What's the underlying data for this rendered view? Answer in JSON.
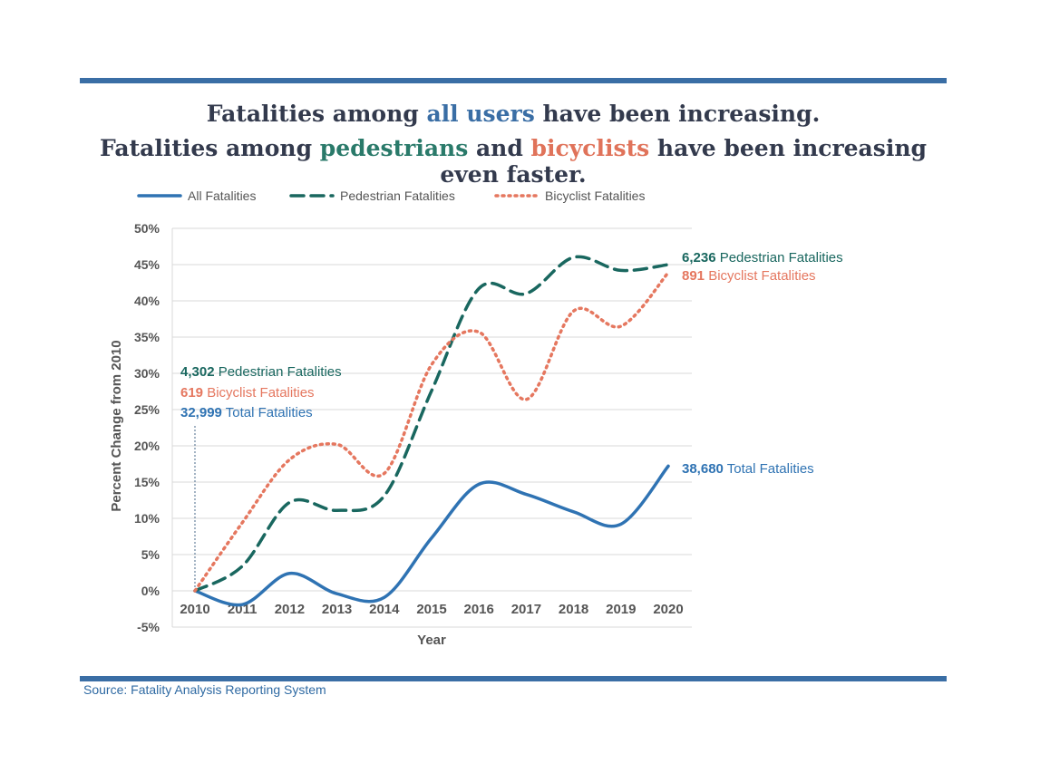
{
  "headline": {
    "line1": {
      "a": "Fatalities among ",
      "b": "all users",
      "c": " have been increasing."
    },
    "line2": {
      "a": "Fatalities among ",
      "b": "pedestrians",
      "c": " and ",
      "d": "bicyclists",
      "e": " have been increasing even faster."
    }
  },
  "source": "Source: Fatality Analysis Reporting System",
  "colors": {
    "all": "#2f73b3",
    "pedestrian": "#19675f",
    "bicyclist": "#e5775f",
    "rule": "#3a6ea5",
    "grid": "#d9d9d9",
    "axis_text": "#555555"
  },
  "chart_data": {
    "type": "line",
    "xlabel": "Year",
    "ylabel": "Percent Change from 2010",
    "x": [
      2010,
      2011,
      2012,
      2013,
      2014,
      2015,
      2016,
      2017,
      2018,
      2019,
      2020
    ],
    "ylim": [
      -5,
      50
    ],
    "yticks": [
      -5,
      0,
      5,
      10,
      15,
      20,
      25,
      30,
      35,
      40,
      45,
      50
    ],
    "ytick_labels": [
      "-5%",
      "0%",
      "5%",
      "10%",
      "15%",
      "20%",
      "25%",
      "30%",
      "35%",
      "40%",
      "45%",
      "50%"
    ],
    "grid": true,
    "legend_position": "top",
    "series": [
      {
        "name": "All Fatalities",
        "key": "all",
        "style": "solid",
        "values": [
          0,
          -1.9,
          2.4,
          -0.4,
          -0.9,
          7.3,
          14.7,
          13.3,
          10.9,
          9.2,
          17.2
        ]
      },
      {
        "name": "Pedestrian Fatalities",
        "key": "pedestrian",
        "style": "dashed",
        "values": [
          0,
          3.4,
          12.2,
          11.1,
          13.1,
          27.6,
          41.7,
          41.0,
          46.0,
          44.2,
          45.0
        ]
      },
      {
        "name": "Bicyclist Fatalities",
        "key": "bicyclist",
        "style": "dotted",
        "values": [
          0,
          9.4,
          18.1,
          20.2,
          16.2,
          31.2,
          35.7,
          26.4,
          38.6,
          36.5,
          43.9
        ]
      }
    ],
    "annotations": {
      "start": [
        {
          "key": "pedestrian",
          "number": "4,302",
          "label": " Pedestrian Fatalities"
        },
        {
          "key": "bicyclist",
          "number": "619",
          "label": " Bicyclist Fatalities"
        },
        {
          "key": "all",
          "number": "32,999",
          "label": " Total Fatalities"
        }
      ],
      "end_pedestrian": {
        "number": "6,236",
        "label": " Pedestrian Fatalities"
      },
      "end_bicyclist": {
        "number": "891",
        "label": " Bicyclist Fatalities"
      },
      "end_all": {
        "number": "38,680",
        "label": " Total Fatalities"
      }
    }
  }
}
